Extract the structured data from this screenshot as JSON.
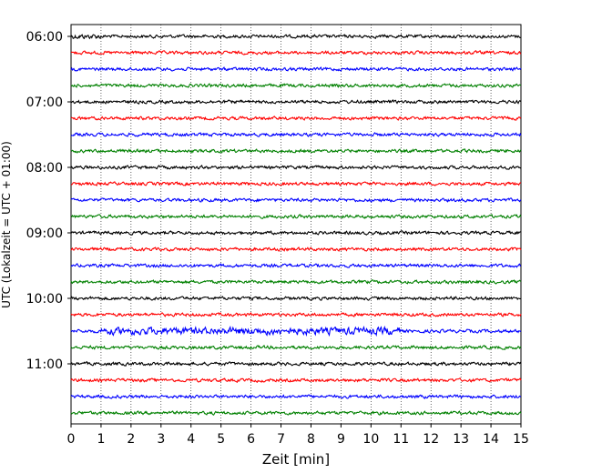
{
  "chart_data": {
    "type": "line",
    "title": "",
    "xlabel": "Zeit  [min]",
    "ylabel": "UTC (Lokalzeit = UTC + 01:00)",
    "xlim": [
      0,
      15
    ],
    "x_ticks": [
      0,
      1,
      2,
      3,
      4,
      5,
      6,
      7,
      8,
      9,
      10,
      11,
      12,
      13,
      14,
      15
    ],
    "y_tick_labels": [
      "06:00",
      "07:00",
      "08:00",
      "09:00",
      "10:00",
      "11:00"
    ],
    "y_tick_minutes": [
      0,
      60,
      120,
      180,
      240,
      300
    ],
    "trace_interval_min": 15,
    "trace_start_minutes": [
      0,
      15,
      30,
      45,
      60,
      75,
      90,
      105,
      120,
      135,
      150,
      165,
      180,
      195,
      210,
      225,
      240,
      255,
      270,
      285,
      300,
      315,
      330,
      345
    ],
    "trace_color_cycle": [
      "#000000",
      "#ff0000",
      "#0000ff",
      "#008000"
    ],
    "grid": "vertical dotted at each minute",
    "legend": "none",
    "notes_visible": "helicorder traces; amplitudes are relative (no amplitude scale printed)"
  }
}
